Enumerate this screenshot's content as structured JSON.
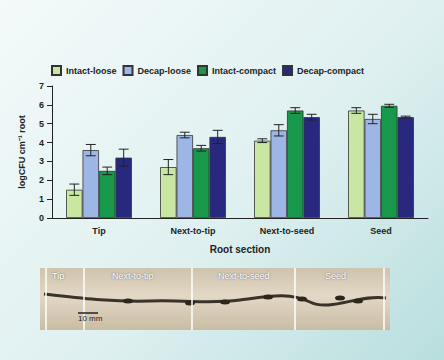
{
  "chart_data": {
    "type": "bar",
    "categories": [
      "Tip",
      "Next-to-tip",
      "Next-to-seed",
      "Seed"
    ],
    "series": [
      {
        "name": "Intact-loose",
        "color": "#c9e7a3",
        "values": [
          1.5,
          2.7,
          4.1,
          5.7
        ],
        "errors": [
          0.3,
          0.4,
          0.1,
          0.15
        ]
      },
      {
        "name": "Decap-loose",
        "color": "#9db6e6",
        "values": [
          3.6,
          4.4,
          4.65,
          5.25
        ],
        "errors": [
          0.3,
          0.15,
          0.3,
          0.25
        ]
      },
      {
        "name": "Intact-compact",
        "color": "#17984a",
        "values": [
          2.5,
          3.7,
          5.7,
          5.95
        ],
        "errors": [
          0.2,
          0.15,
          0.15,
          0.08
        ]
      },
      {
        "name": "Decap-compact",
        "color": "#28287e",
        "values": [
          3.2,
          4.3,
          5.35,
          5.35
        ],
        "errors": [
          0.45,
          0.35,
          0.15,
          0.05
        ]
      }
    ],
    "x_label": "Root section",
    "y_label": "logCFU cm⁻¹ root",
    "ylim": [
      0,
      7
    ],
    "yticks": [
      0,
      1,
      2,
      3,
      4,
      5,
      6,
      7
    ],
    "legend": "top",
    "grid": false
  },
  "photo": {
    "sections": [
      "Tip",
      "Next-to-tip",
      "Next-to-seed",
      "Seed"
    ],
    "scale_bar": "10 mm"
  }
}
